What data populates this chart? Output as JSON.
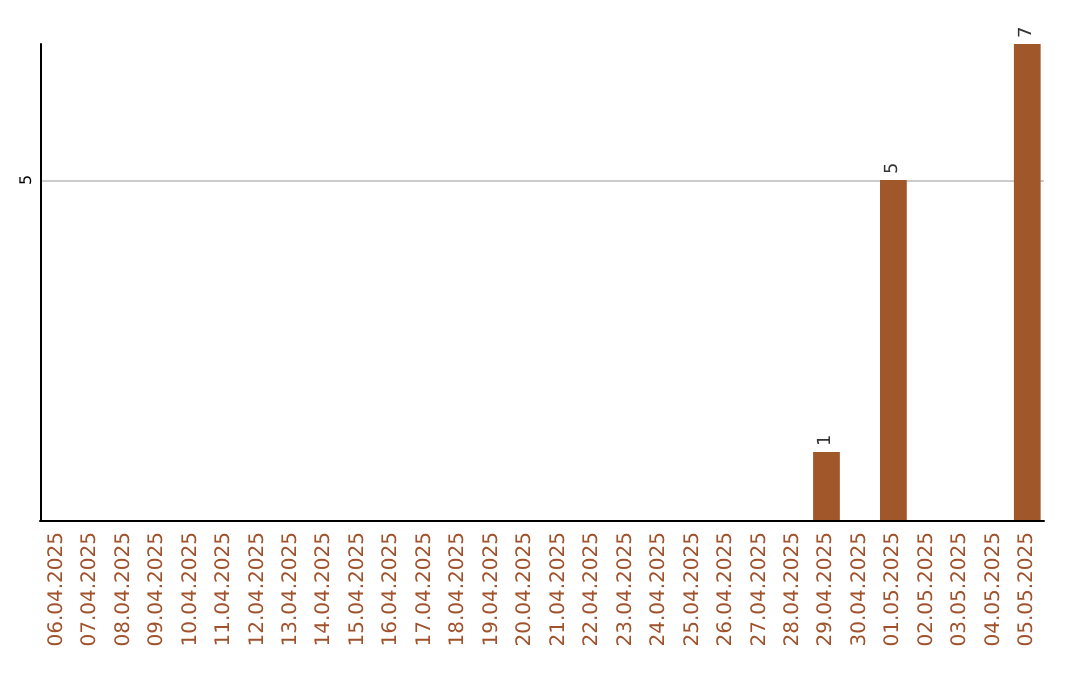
{
  "chart_data": {
    "type": "bar",
    "categories": [
      "06.04.2025",
      "07.04.2025",
      "08.04.2025",
      "09.04.2025",
      "10.04.2025",
      "11.04.2025",
      "12.04.2025",
      "13.04.2025",
      "14.04.2025",
      "15.04.2025",
      "16.04.2025",
      "17.04.2025",
      "18.04.2025",
      "19.04.2025",
      "20.04.2025",
      "21.04.2025",
      "22.04.2025",
      "23.04.2025",
      "24.04.2025",
      "25.04.2025",
      "26.04.2025",
      "27.04.2025",
      "28.04.2025",
      "29.04.2025",
      "30.04.2025",
      "01.05.2025",
      "02.05.2025",
      "03.05.2025",
      "04.05.2025",
      "05.05.2025"
    ],
    "values": [
      null,
      null,
      null,
      null,
      null,
      null,
      null,
      null,
      null,
      null,
      null,
      null,
      null,
      null,
      null,
      null,
      null,
      null,
      null,
      null,
      null,
      null,
      null,
      1,
      null,
      5,
      null,
      null,
      null,
      7
    ],
    "color": "#a0582a",
    "ylim": [
      0,
      7
    ],
    "yticks": [
      5
    ],
    "grid": "y",
    "data_labels": true
  }
}
